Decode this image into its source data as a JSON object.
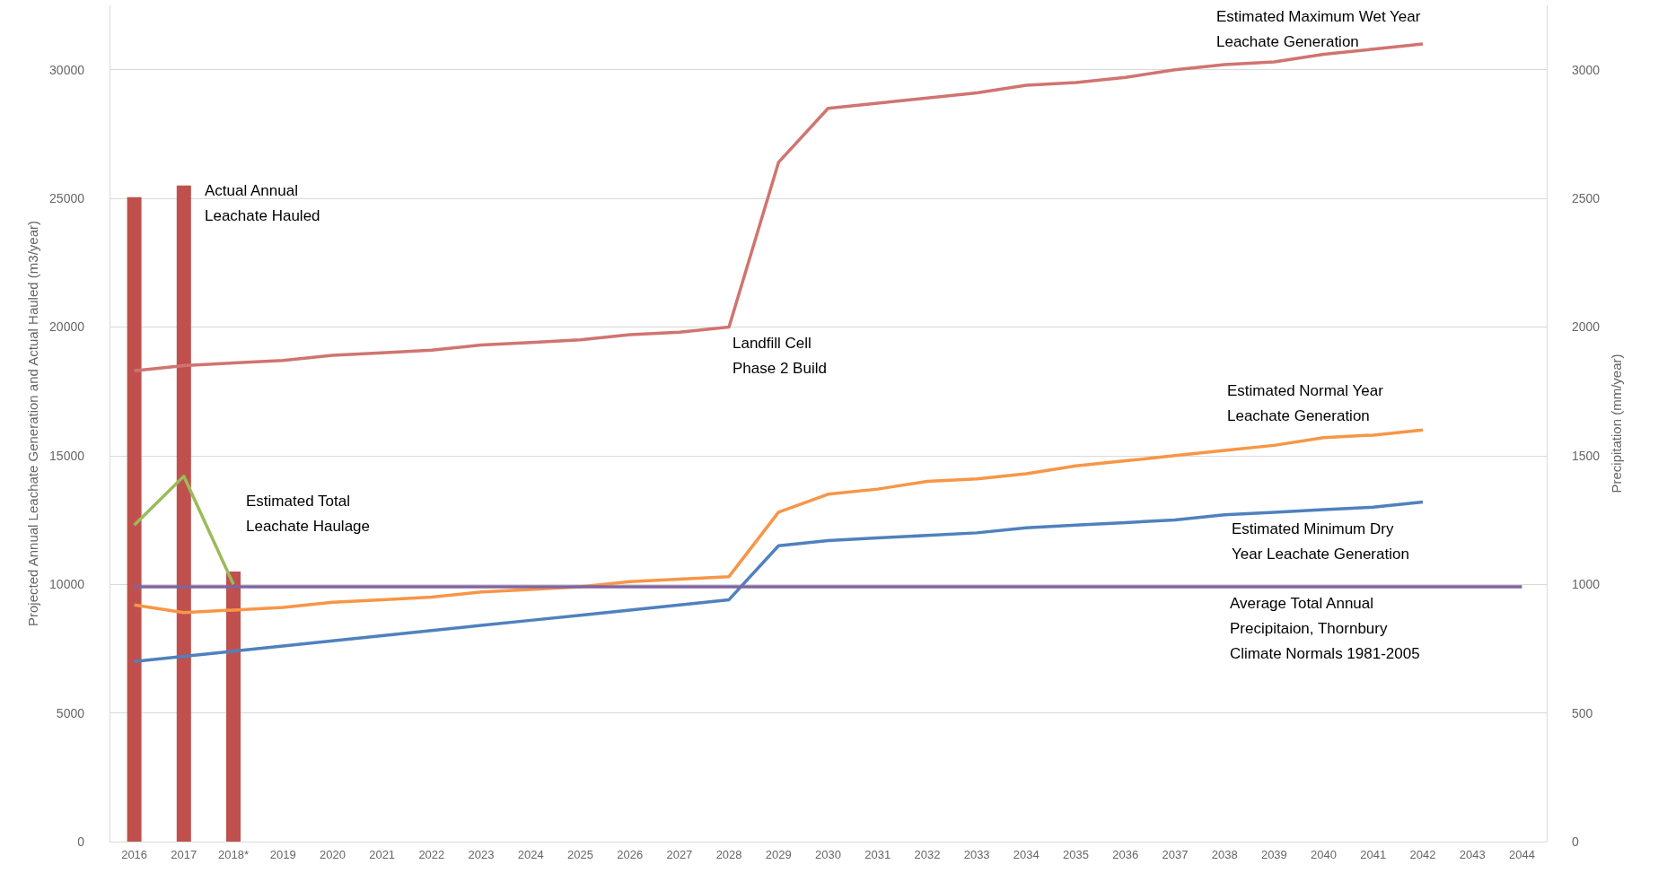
{
  "chart_data": {
    "type": "line",
    "ylabel": "Projected Annual Leachate Generation and Actual Hauled (m3/year)",
    "y2label": "Precipitation (mm/year)",
    "categories": [
      "2016",
      "2017",
      "2018*",
      "2019",
      "2020",
      "2021",
      "2022",
      "2023",
      "2024",
      "2025",
      "2026",
      "2027",
      "2028",
      "2029",
      "2030",
      "2031",
      "2032",
      "2033",
      "2034",
      "2035",
      "2036",
      "2037",
      "2038",
      "2039",
      "2040",
      "2041",
      "2042",
      "2043",
      "2044"
    ],
    "ylim": [
      0,
      32500
    ],
    "yticks": [
      0,
      5000,
      10000,
      15000,
      20000,
      25000,
      30000
    ],
    "y2lim": [
      0,
      3250
    ],
    "y2ticks": [
      0,
      500,
      1000,
      1500,
      2000,
      2500,
      3000
    ],
    "grid": "y",
    "marker": "none",
    "series": [
      {
        "type": "bar",
        "color": "#c0504d",
        "values": [
          25050,
          25500,
          10500,
          null,
          null,
          null,
          null,
          null,
          null,
          null,
          null,
          null,
          null,
          null,
          null,
          null,
          null,
          null,
          null,
          null,
          null,
          null,
          null,
          null,
          null,
          null,
          null,
          null,
          null
        ]
      },
      {
        "color": "#d07470",
        "values": [
          18300,
          18500,
          18600,
          18700,
          18900,
          19000,
          19100,
          19300,
          19400,
          19500,
          19700,
          19800,
          20000,
          26400,
          28500,
          28700,
          28900,
          29100,
          29400,
          29500,
          29700,
          30000,
          30200,
          30300,
          30600,
          30800,
          31000,
          null,
          null
        ]
      },
      {
        "color": "#f79646",
        "values": [
          9200,
          8900,
          9000,
          9100,
          9300,
          9400,
          9500,
          9700,
          9800,
          9900,
          10100,
          10200,
          10300,
          12800,
          13500,
          13700,
          14000,
          14100,
          14300,
          14600,
          14800,
          15000,
          15200,
          15400,
          15700,
          15800,
          16000,
          null,
          null
        ]
      },
      {
        "color": "#4f81bd",
        "values": [
          7000,
          7200,
          7400,
          7600,
          7800,
          8000,
          8200,
          8400,
          8600,
          8800,
          9000,
          9200,
          9400,
          11500,
          11700,
          11800,
          11900,
          12000,
          12200,
          12300,
          12400,
          12500,
          12700,
          12800,
          12900,
          13000,
          13200,
          null,
          null
        ]
      },
      {
        "color": "#9bbb59",
        "values": [
          12300,
          14200,
          10000,
          null,
          null,
          null,
          null,
          null,
          null,
          null,
          null,
          null,
          null,
          null,
          null,
          null,
          null,
          null,
          null,
          null,
          null,
          null,
          null,
          null,
          null,
          null,
          null,
          null,
          null
        ]
      },
      {
        "color": "#8064a2",
        "axis": "y2",
        "values": [
          990,
          990,
          990,
          990,
          990,
          990,
          990,
          990,
          990,
          990,
          990,
          990,
          990,
          990,
          990,
          990,
          990,
          990,
          990,
          990,
          990,
          990,
          990,
          990,
          990,
          990,
          990,
          990,
          990
        ]
      }
    ],
    "annotations": [
      "Estimated Maximum Wet Year\nLeachate Generation",
      "Actual Annual\nLeachate Hauled",
      "Landfill Cell\nPhase 2 Build",
      "Estimated Normal Year\nLeachate Generation",
      "Estimated Total\nLeachate Haulage",
      "Estimated Minimum Dry\nYear Leachate Generation",
      "Average Total Annual\nPrecipitaion, Thornbury\nClimate Normals 1981-2005"
    ]
  }
}
